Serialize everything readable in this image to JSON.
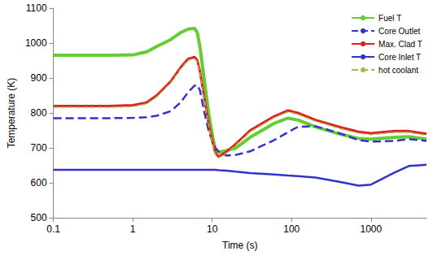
{
  "chart_data": {
    "type": "line",
    "x_label": "Time (s)",
    "y_label": "Temperature (K)",
    "log": "x",
    "grid": false,
    "legend": "upper right",
    "xlim": [
      0.1,
      5000
    ],
    "xticks": [
      0.1,
      1,
      10,
      100,
      1000
    ],
    "ylim": [
      500,
      1100
    ],
    "yticks": [
      500,
      600,
      700,
      800,
      900,
      1000,
      1100
    ],
    "x": [
      0.1,
      0.5,
      1,
      1.5,
      2,
      3,
      4,
      5,
      6,
      6.5,
      7,
      8,
      9,
      10,
      11,
      12,
      15,
      20,
      30,
      60,
      90,
      120,
      200,
      400,
      700,
      1000,
      2000,
      3000,
      5000
    ],
    "series": [
      {
        "name": "Fuel T",
        "color": "#66cc33",
        "line_style": "solid",
        "values": [
          965,
          965,
          966,
          975,
          990,
          1010,
          1030,
          1040,
          1042,
          1030,
          990,
          890,
          800,
          740,
          690,
          688,
          692,
          700,
          730,
          770,
          785,
          780,
          760,
          740,
          727,
          725,
          730,
          732,
          725
        ]
      },
      {
        "name": "Core Outlet",
        "color": "#3333cc",
        "line_style": "dashed",
        "values": [
          785,
          785,
          786,
          788,
          792,
          805,
          830,
          860,
          878,
          880,
          865,
          800,
          750,
          720,
          700,
          690,
          678,
          680,
          690,
          722,
          745,
          760,
          762,
          742,
          722,
          718,
          720,
          725,
          720
        ]
      },
      {
        "name": "Max. Clad T",
        "color": "#e02020",
        "line_style": "solid",
        "values": [
          820,
          820,
          822,
          830,
          850,
          890,
          930,
          955,
          960,
          950,
          920,
          840,
          770,
          720,
          685,
          675,
          688,
          712,
          750,
          790,
          807,
          800,
          780,
          760,
          746,
          742,
          748,
          748,
          740
        ]
      },
      {
        "name": "Core Inlet T",
        "color": "#3333cc",
        "line_style": "solid",
        "values": [
          637,
          637,
          637,
          637,
          637,
          637,
          637,
          637,
          637,
          637,
          637,
          637,
          637,
          637,
          637,
          636,
          635,
          632,
          628,
          624,
          621,
          619,
          615,
          603,
          592,
          595,
          630,
          648,
          652
        ]
      },
      {
        "name": "hot coolant",
        "color": "#a8b84a",
        "line_style": "dashed",
        "values": [
          816,
          816,
          818,
          826,
          846,
          886,
          926,
          951,
          956,
          946,
          916,
          836,
          766,
          716,
          681,
          671,
          684,
          708,
          746,
          786,
          803,
          796,
          776,
          756,
          742,
          738,
          744,
          744,
          736
        ]
      }
    ]
  }
}
